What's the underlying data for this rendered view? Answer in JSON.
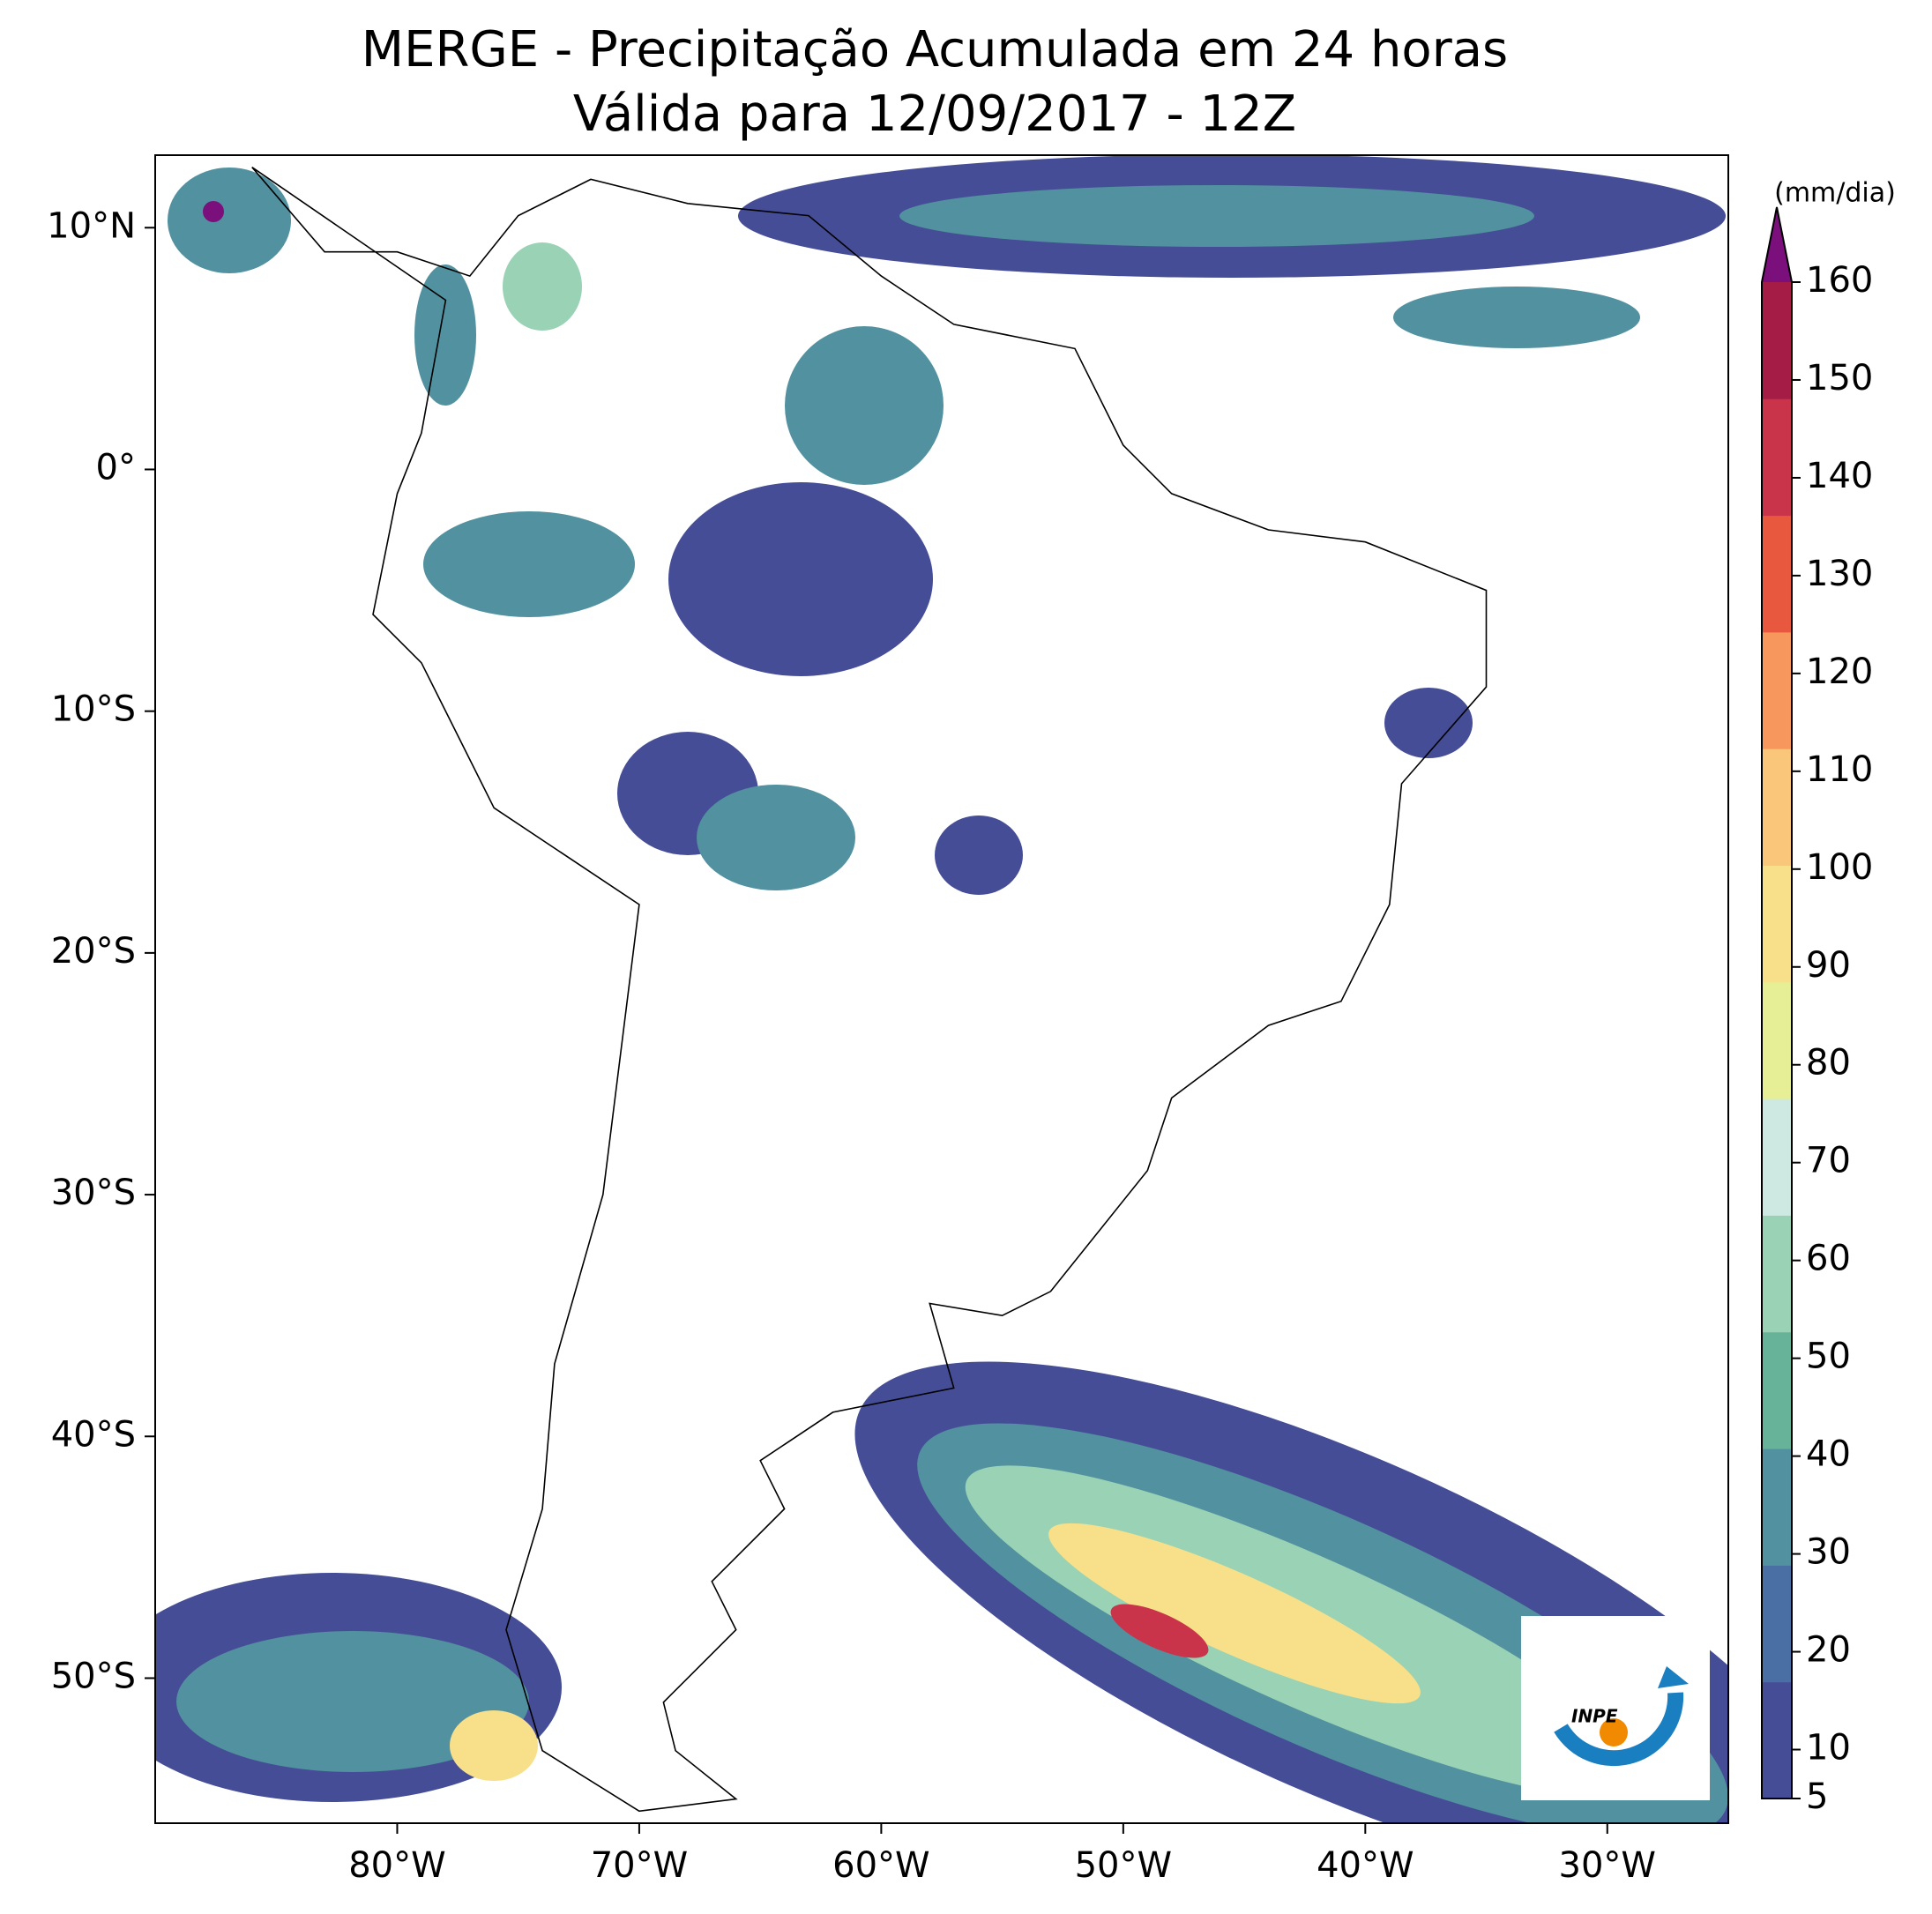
{
  "chart_data": {
    "type": "map",
    "title": "MERGE - Precipitação Acumulada em 24 horas",
    "subtitle": "Válida para 12/09/2017 - 12Z",
    "xlim": [
      -90,
      -25
    ],
    "ylim": [
      -56,
      13
    ],
    "xticks": [
      {
        "value": -80,
        "label": "80°W"
      },
      {
        "value": -70,
        "label": "70°W"
      },
      {
        "value": -60,
        "label": "60°W"
      },
      {
        "value": -50,
        "label": "50°W"
      },
      {
        "value": -40,
        "label": "40°W"
      },
      {
        "value": -30,
        "label": "30°W"
      }
    ],
    "yticks": [
      {
        "value": 10,
        "label": "10°N"
      },
      {
        "value": 0,
        "label": "0°"
      },
      {
        "value": -10,
        "label": "10°S"
      },
      {
        "value": -20,
        "label": "20°S"
      },
      {
        "value": -30,
        "label": "30°S"
      },
      {
        "value": -40,
        "label": "40°S"
      },
      {
        "value": -50,
        "label": "50°S"
      }
    ],
    "colorbar": {
      "label": "(mm/dia)",
      "lim": [
        5,
        160
      ],
      "ticks": [
        5,
        10,
        20,
        30,
        40,
        50,
        60,
        70,
        80,
        90,
        100,
        110,
        120,
        130,
        140,
        150,
        160
      ],
      "colors": [
        "#454d97",
        "#4a6fa5",
        "#52919f",
        "#67b39a",
        "#9ad2b5",
        "#cde9e1",
        "#e6ef95",
        "#f8e08a",
        "#f9c67a",
        "#f7975d",
        "#e8583f",
        "#c9344a",
        "#a51d46"
      ],
      "extend_color": "#7b0f7c"
    },
    "logo_text": "INPE"
  }
}
